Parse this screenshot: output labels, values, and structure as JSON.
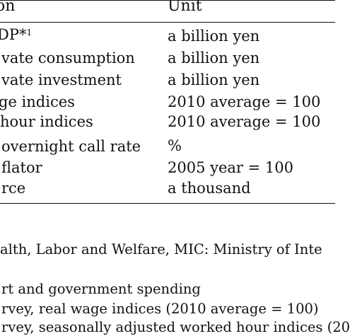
{
  "table": {
    "header": {
      "description": "on",
      "unit": "Unit"
    },
    "rows": [
      {
        "description": "DP*",
        "sup": "1",
        "unit": "a billion yen"
      },
      {
        "description": "vate consumption",
        "unit": "a billion yen"
      },
      {
        "description": "vate investment",
        "unit": "a billion yen"
      },
      {
        "description": "ge indices",
        "unit": "2010 average = 100"
      },
      {
        "description": "hour indices",
        "unit": "2010 average = 100"
      },
      {
        "description": "overnight call rate",
        "unit": "%"
      },
      {
        "description": "flator",
        "unit": "2005 year = 100"
      },
      {
        "description": "rce",
        "unit": "a thousand"
      }
    ]
  },
  "notes": [
    "alth, Labor and Welfare, MIC: Ministry of Inte",
    "rt and government spending",
    "rvey, real wage indices (2010 average = 100)",
    "rvey, seasonally adjusted worked hour indices (20"
  ]
}
